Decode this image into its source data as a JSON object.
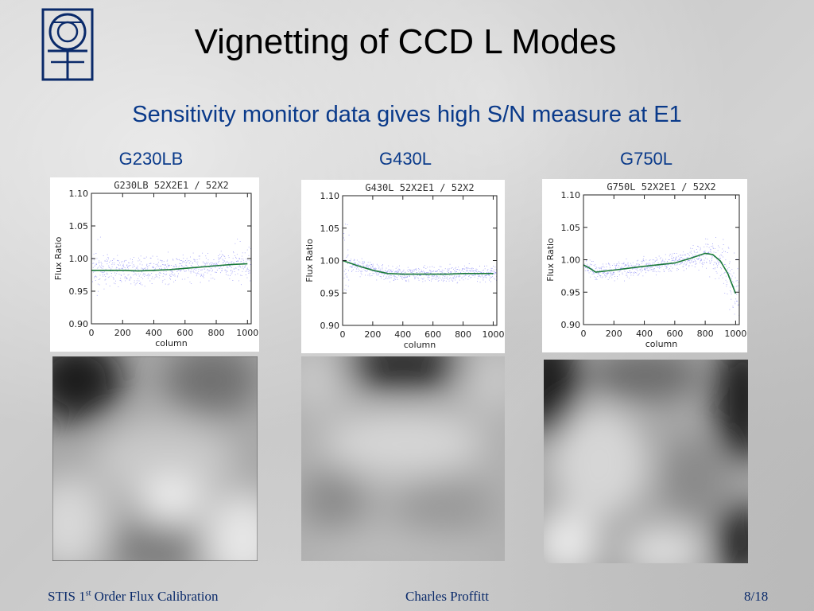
{
  "slide": {
    "title": "Vignetting of CCD L Modes",
    "subtitle": "Sensitivity monitor data gives high S/N measure at E1",
    "footer_left_pre": "STIS 1",
    "footer_left_sup": "st",
    "footer_left_post": " Order Flux Calibration",
    "footer_center": "Charles Proffitt",
    "footer_right": "8/18"
  },
  "colors": {
    "heading_blue": "#0a3a8a",
    "scatter_blue": "#5a5af0",
    "fit_green": "#1a7a3a"
  },
  "panels": [
    {
      "label": "G230LB"
    },
    {
      "label": "G430L"
    },
    {
      "label": "G750L"
    }
  ],
  "chart_data": [
    {
      "type": "scatter",
      "title": "G230LB 52X2E1 / 52X2",
      "xlabel": "column",
      "ylabel": "Flux Ratio",
      "xlim": [
        0,
        1024
      ],
      "ylim": [
        0.9,
        1.1
      ],
      "xticks": [
        "0",
        "200",
        "400",
        "600",
        "800",
        "1000"
      ],
      "yticks": [
        "0.90",
        "0.95",
        "1.00",
        "1.05",
        "1.10"
      ],
      "fit": {
        "x": [
          0,
          100,
          200,
          300,
          400,
          500,
          600,
          700,
          800,
          900,
          1000
        ],
        "y": [
          0.982,
          0.982,
          0.982,
          0.981,
          0.982,
          0.983,
          0.985,
          0.987,
          0.989,
          0.991,
          0.992
        ]
      }
    },
    {
      "type": "scatter",
      "title": "G430L 52X2E1 / 52X2",
      "xlabel": "column",
      "ylabel": "Flux Ratio",
      "xlim": [
        0,
        1024
      ],
      "ylim": [
        0.9,
        1.1
      ],
      "xticks": [
        "0",
        "200",
        "400",
        "600",
        "800",
        "1000"
      ],
      "yticks": [
        "0.90",
        "0.95",
        "1.00",
        "1.05",
        "1.10"
      ],
      "fit": {
        "x": [
          0,
          50,
          100,
          200,
          300,
          400,
          500,
          600,
          700,
          800,
          900,
          1000
        ],
        "y": [
          1.0,
          0.996,
          0.992,
          0.985,
          0.98,
          0.979,
          0.979,
          0.979,
          0.979,
          0.98,
          0.98,
          0.98
        ]
      }
    },
    {
      "type": "scatter",
      "title": "G750L 52X2E1 / 52X2",
      "xlabel": "column",
      "ylabel": "Flux Ratio",
      "xlim": [
        0,
        1024
      ],
      "ylim": [
        0.9,
        1.1
      ],
      "xticks": [
        "0",
        "200",
        "400",
        "600",
        "800",
        "1000"
      ],
      "yticks": [
        "0.90",
        "0.95",
        "1.00",
        "1.05",
        "1.10"
      ],
      "fit": {
        "x": [
          0,
          40,
          80,
          200,
          400,
          600,
          700,
          800,
          850,
          900,
          950,
          1000
        ],
        "y": [
          0.992,
          0.987,
          0.981,
          0.984,
          0.99,
          0.995,
          1.002,
          1.01,
          1.008,
          0.998,
          0.978,
          0.948
        ]
      }
    }
  ]
}
